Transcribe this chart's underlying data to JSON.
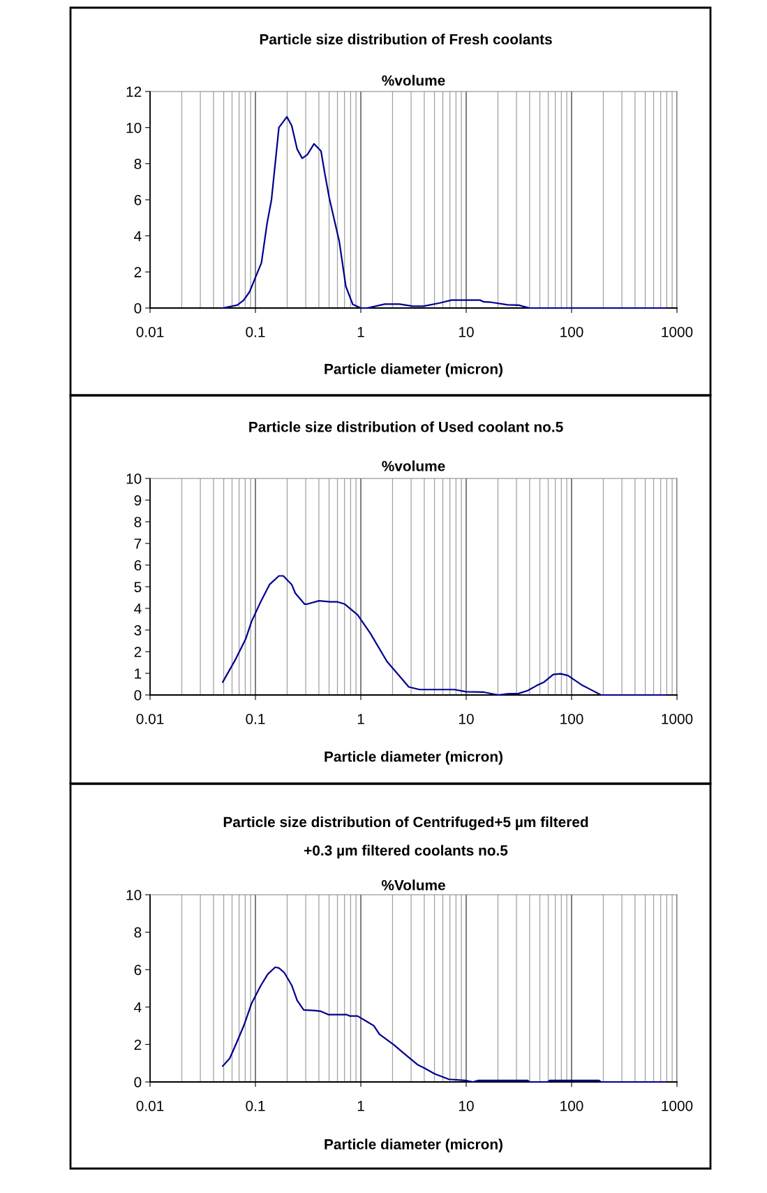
{
  "chart_data": [
    {
      "type": "line",
      "title": "Particle size distribution of Fresh coolants",
      "ylabel": "%volume",
      "xlabel": "Particle diameter (micron)",
      "log": "x",
      "grid": "x",
      "marker": "none",
      "line_style": "solid",
      "xlim": [
        0.01,
        1000
      ],
      "xticks": [
        0.01,
        0.1,
        1,
        10,
        100,
        1000
      ],
      "ylim": [
        0,
        12
      ],
      "yticks": [
        0,
        2,
        4,
        6,
        8,
        10,
        12
      ],
      "series": [
        {
          "color": "#000090",
          "x": [
            0.049,
            0.067,
            0.077,
            0.088,
            0.1,
            0.114,
            0.129,
            0.142,
            0.167,
            0.199,
            0.221,
            0.249,
            0.278,
            0.311,
            0.36,
            0.419,
            0.457,
            0.502,
            0.624,
            0.721,
            0.839,
            1,
            1.15,
            1.69,
            2.33,
            3.09,
            3.93,
            5.62,
            7.26,
            13.5,
            14.7,
            17.2,
            24.7,
            31.4,
            39.9,
            774
          ],
          "values": [
            0,
            0.16,
            0.42,
            0.9,
            1.7,
            2.5,
            4.7,
            6.0,
            10.0,
            10.6,
            10.1,
            8.8,
            8.3,
            8.5,
            9.1,
            8.7,
            7.4,
            6.1,
            3.7,
            1.2,
            0.2,
            0,
            0,
            0.22,
            0.22,
            0.1,
            0.1,
            0.28,
            0.44,
            0.44,
            0.34,
            0.32,
            0.18,
            0.16,
            0,
            0
          ]
        }
      ]
    },
    {
      "type": "line",
      "title": "Particle size distribution of Used coolant no.5",
      "ylabel": "%volume",
      "xlabel": "Particle diameter (micron)",
      "log": "x",
      "grid": "x",
      "marker": "none",
      "line_style": "solid",
      "xlim": [
        0.01,
        1000
      ],
      "xticks": [
        0.01,
        0.1,
        1,
        10,
        100,
        1000
      ],
      "ylim": [
        0,
        10
      ],
      "yticks": [
        0,
        1,
        2,
        3,
        4,
        5,
        6,
        7,
        8,
        9,
        10
      ],
      "series": [
        {
          "color": "#000090",
          "x": [
            0.049,
            0.064,
            0.081,
            0.092,
            0.112,
            0.136,
            0.167,
            0.184,
            0.221,
            0.239,
            0.292,
            0.311,
            0.402,
            0.51,
            0.6,
            0.703,
            0.933,
            1.23,
            1.77,
            2.53,
            2.85,
            3.62,
            7.74,
            10,
            14.7,
            20.2,
            24.7,
            31.4,
            38.3,
            46.8,
            54.9,
            67,
            78.7,
            92.3,
            127,
            149,
            190,
            774
          ],
          "values": [
            0.6,
            1.6,
            2.6,
            3.4,
            4.3,
            5.1,
            5.5,
            5.5,
            5.1,
            4.7,
            4.2,
            4.2,
            4.35,
            4.3,
            4.3,
            4.2,
            3.7,
            2.85,
            1.55,
            0.67,
            0.37,
            0.25,
            0.25,
            0.15,
            0.13,
            0,
            0.05,
            0.07,
            0.2,
            0.44,
            0.6,
            0.95,
            0.98,
            0.9,
            0.44,
            0.27,
            0,
            0
          ]
        }
      ]
    },
    {
      "type": "line",
      "title": "Particle size distribution of Centrifuged+5 µm filtered\n+0.3 µm filtered coolants no.5",
      "ylabel": "%Volume",
      "xlabel": "Particle diameter (micron)",
      "log": "x",
      "grid": "x",
      "marker": "none",
      "line_style": "solid",
      "xlim": [
        0.01,
        1000
      ],
      "xticks": [
        0.01,
        0.1,
        1,
        10,
        100,
        1000
      ],
      "ylim": [
        0,
        10
      ],
      "yticks": [
        0,
        2,
        4,
        6,
        8,
        10
      ],
      "series": [
        {
          "color": "#000090",
          "x": [
            0.049,
            0.057,
            0.066,
            0.078,
            0.092,
            0.112,
            0.131,
            0.154,
            0.167,
            0.188,
            0.221,
            0.249,
            0.287,
            0.371,
            0.419,
            0.491,
            0.733,
            0.79,
            0.93,
            1.14,
            1.33,
            1.5,
            2.07,
            2.53,
            3.48,
            4.08,
            4.99,
            6.87,
            9.84,
            11.6,
            13.0,
            38.3,
            40,
            59.4,
            62,
            182,
            190,
            774
          ],
          "values": [
            0.85,
            1.26,
            2.07,
            3.04,
            4.2,
            5.13,
            5.76,
            6.13,
            6.09,
            5.84,
            5.16,
            4.35,
            3.85,
            3.81,
            3.77,
            3.6,
            3.6,
            3.52,
            3.52,
            3.23,
            3.0,
            2.55,
            1.97,
            1.55,
            0.91,
            0.72,
            0.44,
            0.14,
            0.08,
            0,
            0.08,
            0.08,
            0,
            0,
            0.08,
            0.08,
            0,
            0
          ]
        }
      ]
    }
  ]
}
